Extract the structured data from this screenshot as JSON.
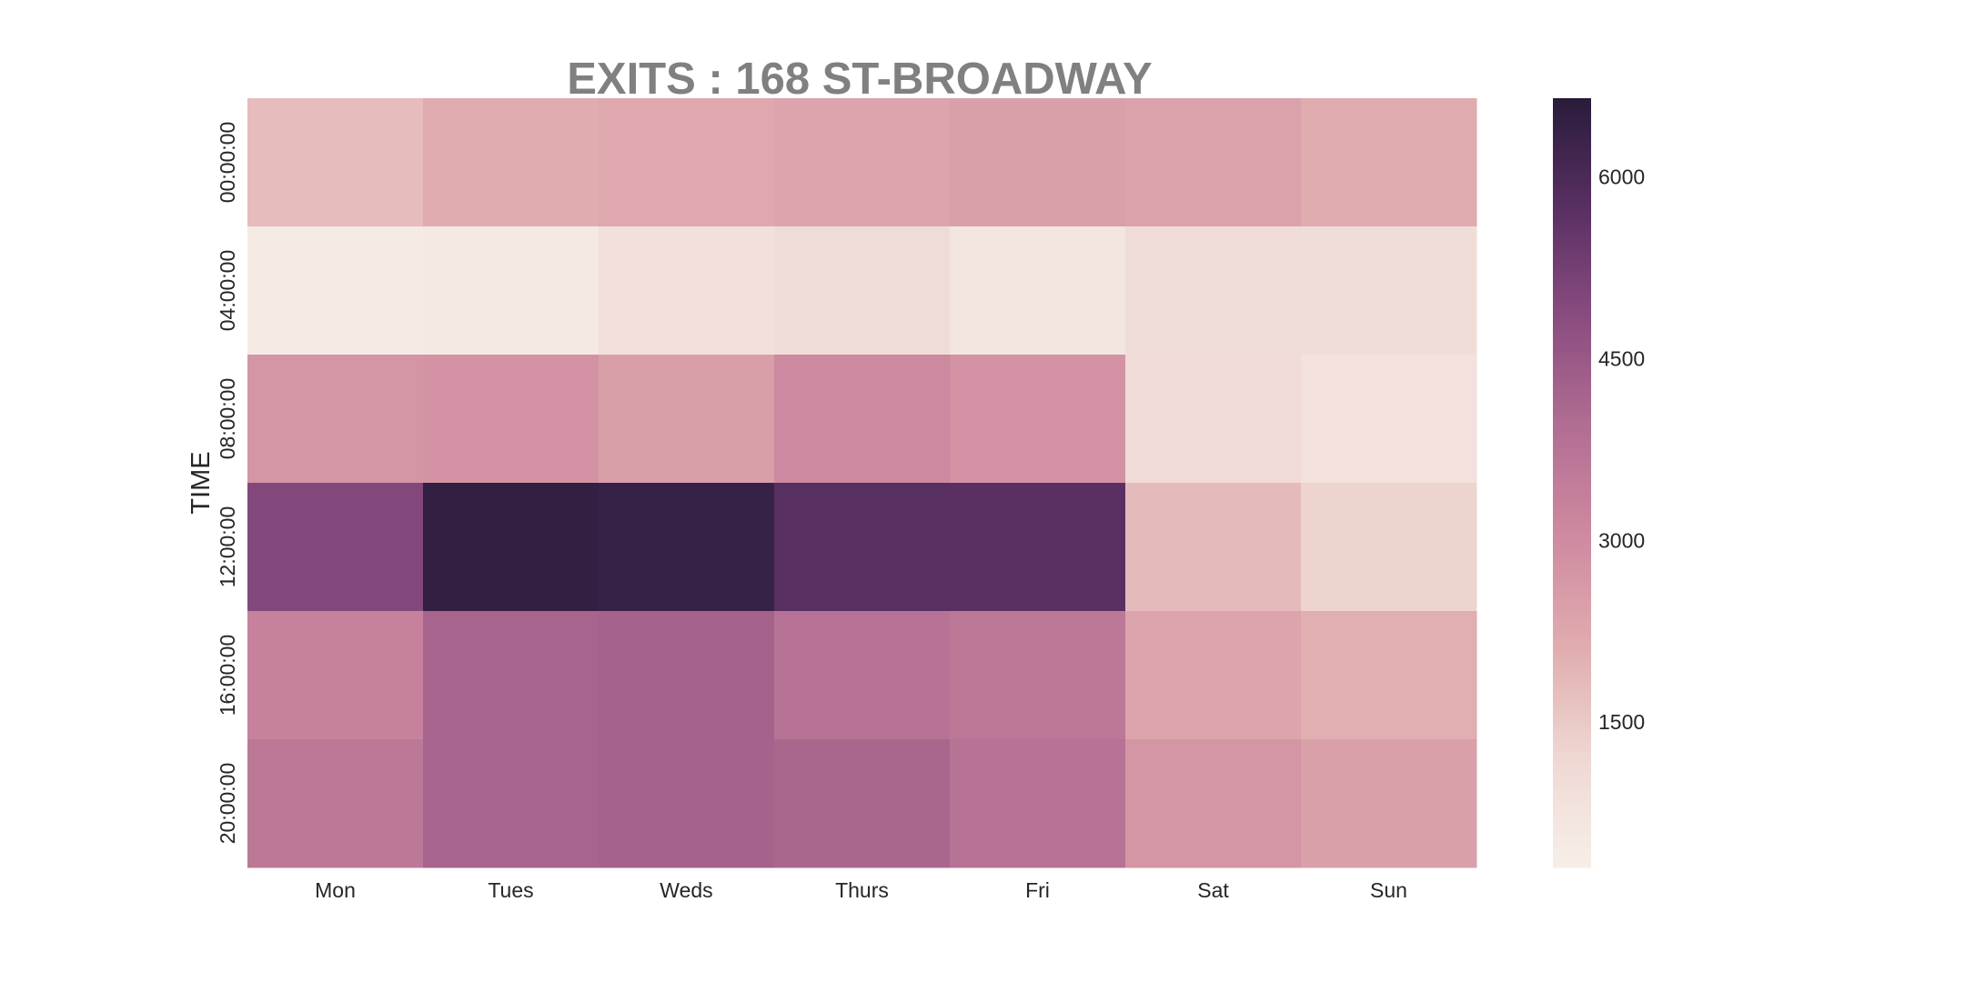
{
  "chart_data": {
    "type": "heatmap",
    "title": "EXITS : 168 ST-BROADWAY",
    "xlabel": "",
    "ylabel": "TIME",
    "x_categories": [
      "Mon",
      "Tues",
      "Weds",
      "Thurs",
      "Fri",
      "Sat",
      "Sun"
    ],
    "y_categories": [
      "00:00:00",
      "04:00:00",
      "08:00:00",
      "12:00:00",
      "16:00:00",
      "20:00:00"
    ],
    "values": [
      [
        1800,
        2150,
        2250,
        2350,
        2450,
        2400,
        2150
      ],
      [
        500,
        550,
        900,
        1050,
        700,
        1050,
        1000
      ],
      [
        2750,
        2800,
        2500,
        3100,
        2800,
        1100,
        850
      ],
      [
        5000,
        6500,
        6400,
        5800,
        5750,
        1850,
        1300
      ],
      [
        3300,
        4200,
        4250,
        3800,
        3650,
        2350,
        2100
      ],
      [
        3650,
        4200,
        4250,
        4150,
        3800,
        2750,
        2450
      ]
    ],
    "colorbar": {
      "vmin": 300,
      "vmax": 6650,
      "ticks": [
        1500,
        3000,
        4500,
        6000
      ]
    },
    "colormap": [
      "#f7efe9",
      "#efd8d3",
      "#e1adb0",
      "#cf8ba0",
      "#b36f93",
      "#8b4d80",
      "#5a3063",
      "#2a1c3c"
    ],
    "grid": false,
    "legend": "colorbar-right"
  }
}
